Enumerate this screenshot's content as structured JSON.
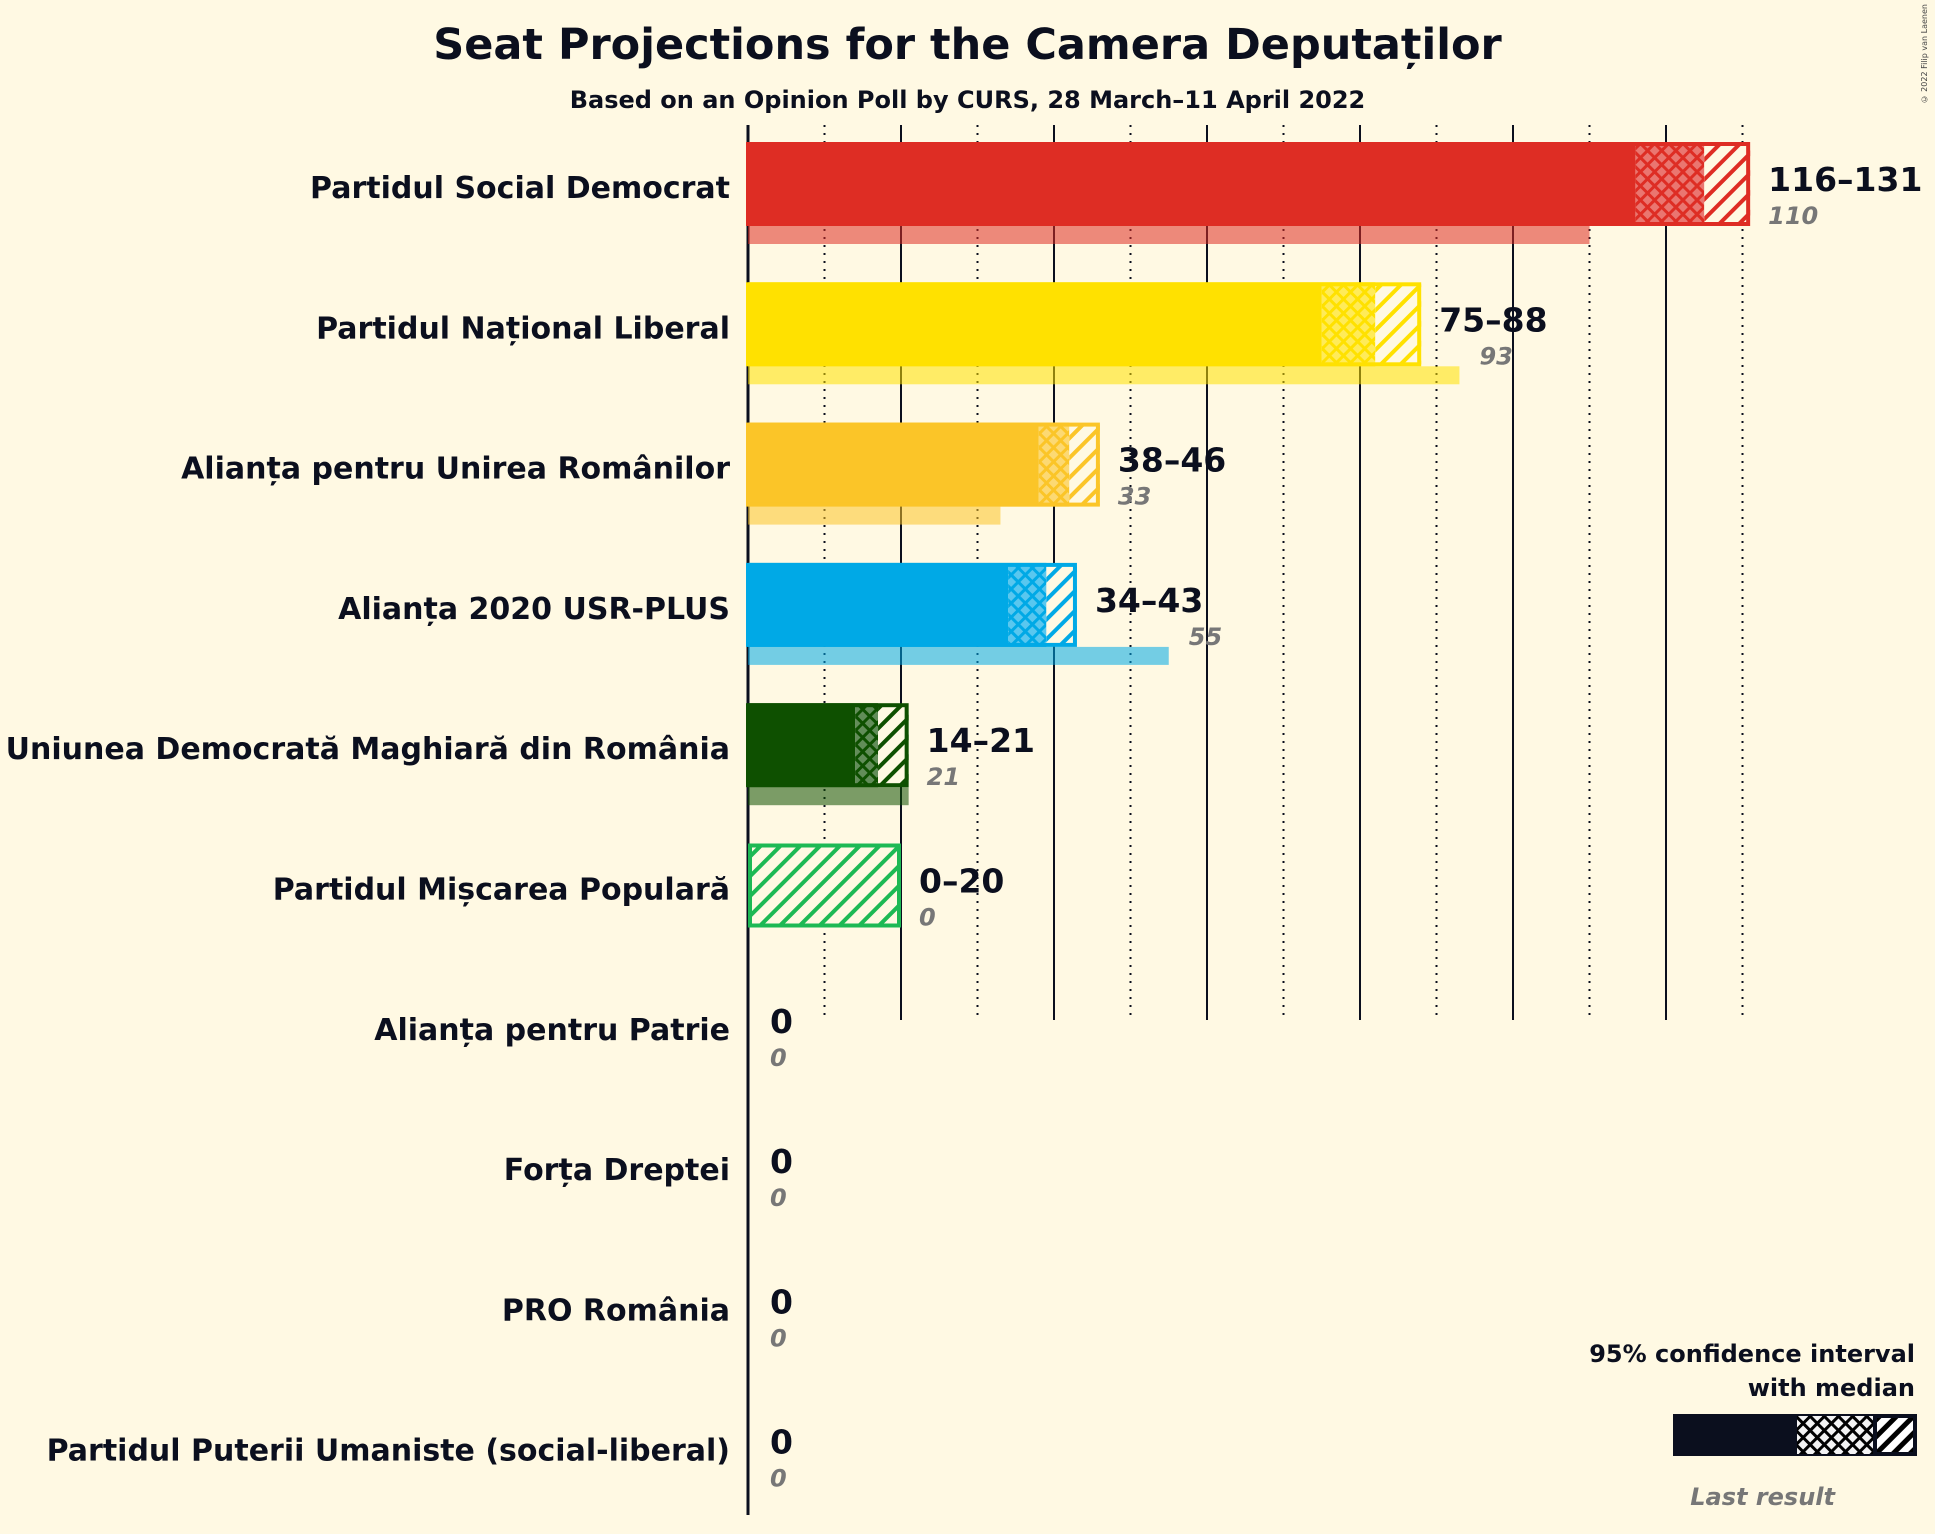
{
  "title": "Seat Projections for the Camera Deputaților",
  "subtitle": "Based on an Opinion Poll by CURS, 28 March–11 April 2022",
  "copyright": "© 2022 Filip van Laenen",
  "legend": {
    "line1": "95% confidence interval",
    "line2": "with median",
    "last_result": "Last result"
  },
  "chart_data": {
    "type": "bar",
    "orientation": "horizontal",
    "title": "Seat Projections for the Camera Deputaților",
    "subtitle": "Based on an Opinion Poll by CURS, 28 March–11 April 2022",
    "xlim": [
      0,
      135
    ],
    "gridlines_solid": [
      0,
      20,
      40,
      60,
      80,
      100,
      120
    ],
    "gridlines_dotted": [
      10,
      30,
      50,
      70,
      90,
      110,
      130
    ],
    "parties": [
      {
        "name": "Partidul Social Democrat",
        "color": "#DE2D24",
        "low": 116,
        "median": 125,
        "high": 131,
        "range_label": "116–131",
        "last": 110,
        "last_label": "110"
      },
      {
        "name": "Partidul Național Liberal",
        "color": "#FFE100",
        "low": 75,
        "median": 82,
        "high": 88,
        "range_label": "75–88",
        "last": 93,
        "last_label": "93"
      },
      {
        "name": "Alianța pentru Unirea Românilor",
        "color": "#FBC528",
        "low": 38,
        "median": 42,
        "high": 46,
        "range_label": "38–46",
        "last": 33,
        "last_label": "33"
      },
      {
        "name": "Alianța 2020 USR-PLUS",
        "color": "#00A9E6",
        "low": 34,
        "median": 39,
        "high": 43,
        "range_label": "34–43",
        "last": 55,
        "last_label": "55"
      },
      {
        "name": "Uniunea Democrată Maghiară din România",
        "color": "#0E5000",
        "low": 14,
        "median": 17,
        "high": 21,
        "range_label": "14–21",
        "last": 21,
        "last_label": "21"
      },
      {
        "name": "Partidul Mișcarea Populară",
        "color": "#1DB954",
        "low": 0,
        "median": 0,
        "high": 20,
        "range_label": "0–20",
        "last": 0,
        "last_label": "0"
      },
      {
        "name": "Alianța pentru Patrie",
        "color": "#888888",
        "low": 0,
        "median": 0,
        "high": 0,
        "range_label": "0",
        "last": 0,
        "last_label": "0"
      },
      {
        "name": "Forța Dreptei",
        "color": "#888888",
        "low": 0,
        "median": 0,
        "high": 0,
        "range_label": "0",
        "last": 0,
        "last_label": "0"
      },
      {
        "name": "PRO România",
        "color": "#888888",
        "low": 0,
        "median": 0,
        "high": 0,
        "range_label": "0",
        "last": 0,
        "last_label": "0"
      },
      {
        "name": "Partidul Puterii Umaniste (social-liberal)",
        "color": "#888888",
        "low": 0,
        "median": 0,
        "high": 0,
        "range_label": "0",
        "last": 0,
        "last_label": "0"
      }
    ]
  }
}
